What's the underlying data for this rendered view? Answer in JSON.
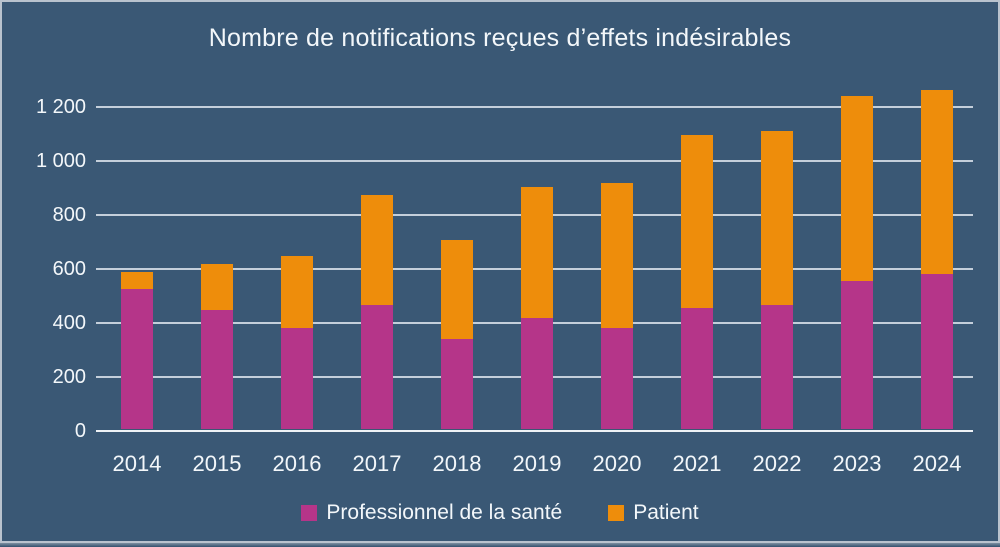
{
  "chart_data": {
    "type": "bar",
    "stacked": true,
    "title": "Nombre de notifications reçues d’effets indésirables",
    "categories": [
      "2014",
      "2015",
      "2016",
      "2017",
      "2018",
      "2019",
      "2020",
      "2021",
      "2022",
      "2023",
      "2024"
    ],
    "series": [
      {
        "name": "Professionnel de la santé",
        "color": "#b53589",
        "values": [
          520,
          440,
          375,
          460,
          335,
          410,
          375,
          450,
          460,
          550,
          575
        ]
      },
      {
        "name": "Patient",
        "color": "#ee8d0b",
        "values": [
          60,
          170,
          265,
          405,
          365,
          485,
          535,
          640,
          645,
          685,
          680
        ]
      }
    ],
    "totals": [
      580,
      610,
      640,
      865,
      700,
      895,
      910,
      1090,
      1105,
      1235,
      1255
    ],
    "xlabel": "",
    "ylabel": "",
    "ylim": [
      0,
      1200
    ],
    "ytick_step": 200,
    "ytick_labels": [
      "0",
      "200",
      "400",
      "600",
      "800",
      "1 000",
      "1 200"
    ],
    "grid": true,
    "legend_position": "bottom",
    "background_color": "#3a5875",
    "gridline_color": "#c4cfdb",
    "text_color": "#f3f7fa"
  }
}
